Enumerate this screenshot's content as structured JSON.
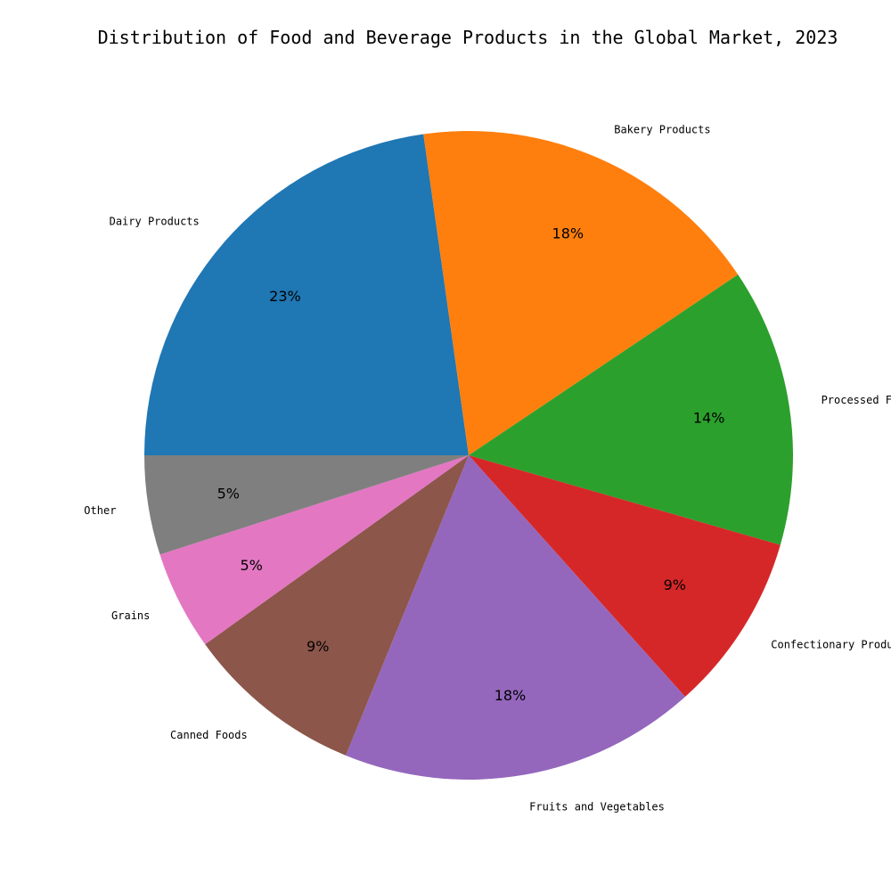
{
  "chart_data": {
    "type": "pie",
    "title": "Distribution of Food and Beverage Products in the Global Market, 2023",
    "slices": [
      {
        "label": "Dairy Products",
        "value": 23,
        "pct_text": "23%",
        "color": "#1f77b4"
      },
      {
        "label": "Bakery Products",
        "value": 18,
        "pct_text": "18%",
        "color": "#ff7f0e"
      },
      {
        "label": "Processed Foods",
        "value": 14,
        "pct_text": "14%",
        "color": "#2ca02c"
      },
      {
        "label": "Confectionary Products",
        "value": 9,
        "pct_text": "9%",
        "color": "#d62728"
      },
      {
        "label": "Fruits and Vegetables",
        "value": 18,
        "pct_text": "18%",
        "color": "#9467bd"
      },
      {
        "label": "Canned Foods",
        "value": 9,
        "pct_text": "9%",
        "color": "#8c564b"
      },
      {
        "label": "Grains",
        "value": 5,
        "pct_text": "5%",
        "color": "#e377c2"
      },
      {
        "label": "Other",
        "value": 5,
        "pct_text": "5%",
        "color": "#7f7f7f"
      }
    ],
    "start_angle": 180,
    "direction": "clockwise",
    "legend": "none"
  }
}
